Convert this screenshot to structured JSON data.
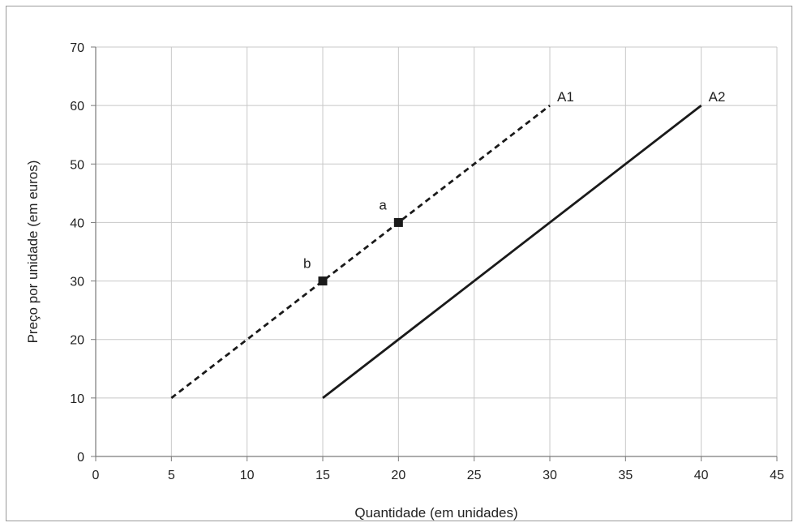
{
  "chart_data": {
    "type": "line",
    "xlabel": "Quantidade (em unidades)",
    "ylabel": "Preço por unidade (em euros)",
    "xlim": [
      0,
      45
    ],
    "ylim": [
      0,
      70
    ],
    "xticks": [
      0,
      5,
      10,
      15,
      20,
      25,
      30,
      35,
      40,
      45
    ],
    "yticks": [
      0,
      10,
      20,
      30,
      40,
      50,
      60,
      70
    ],
    "grid": true,
    "series": [
      {
        "name": "A1",
        "style": "dashed",
        "color": "#1a1a1a",
        "points": [
          [
            5,
            10
          ],
          [
            30,
            60
          ]
        ]
      },
      {
        "name": "A2",
        "style": "solid",
        "color": "#1a1a1a",
        "points": [
          [
            15,
            10
          ],
          [
            40,
            60
          ]
        ]
      }
    ],
    "markers": [
      {
        "label": "a",
        "x": 20,
        "y": 40
      },
      {
        "label": "b",
        "x": 15,
        "y": 30
      }
    ]
  }
}
